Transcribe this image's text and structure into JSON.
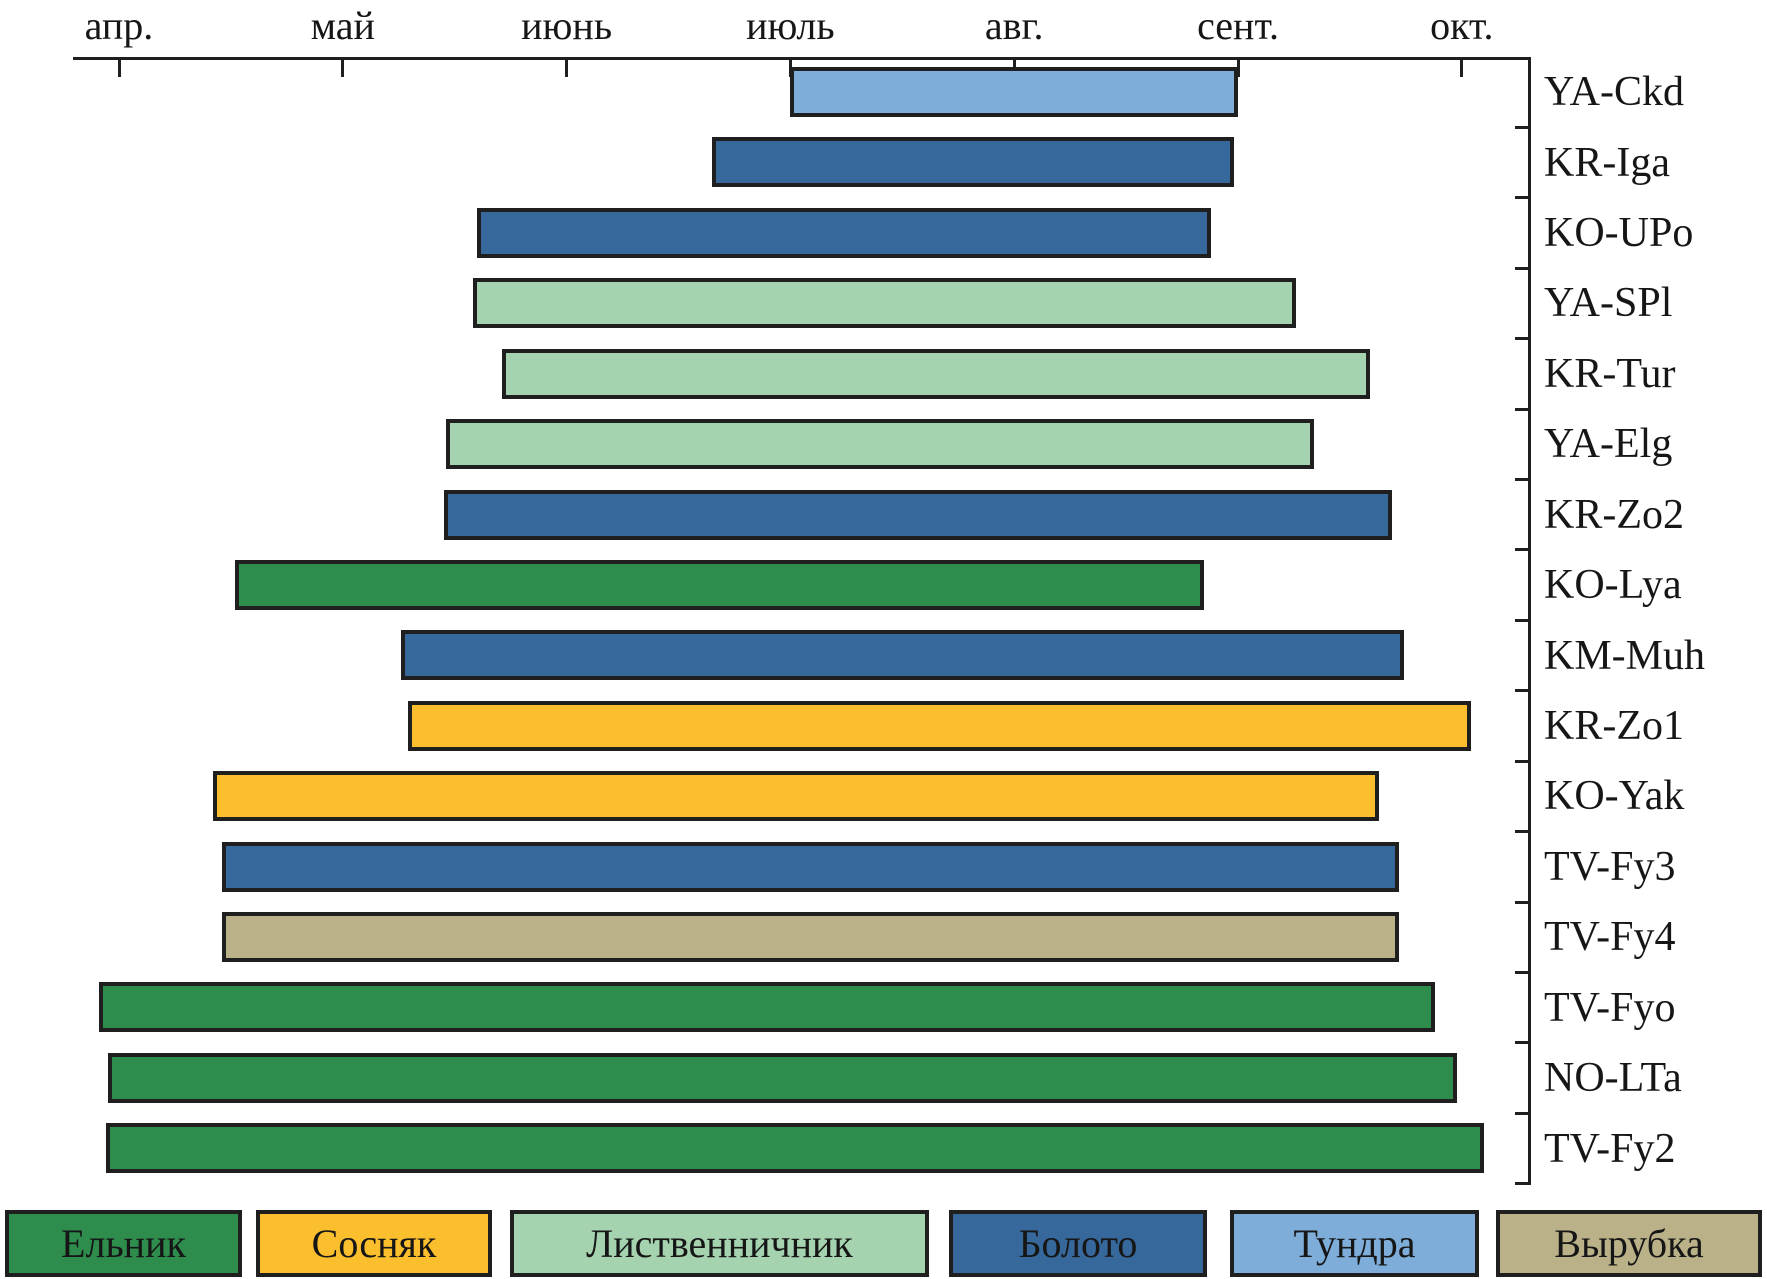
{
  "figure": {
    "background": "#ffffff",
    "axis_color": "#1f1f1f",
    "bar_border_color": "#1f1f1f"
  },
  "colors": {
    "elnik": "#2e8c4d",
    "sosnyak": "#fbbe2c",
    "listvennichnik": "#a5d3af",
    "boloto": "#36689b",
    "tundra": "#7eadda",
    "vyrubka": "#bab189"
  },
  "chart_data": {
    "type": "bar",
    "subtype": "gantt-horizontal-ranges",
    "x_axis": {
      "units": "calendar months; value k = tick position of month k (4 = апр … 10 = окт)",
      "ticks": [
        {
          "m": 4,
          "label": "апр."
        },
        {
          "m": 5,
          "label": "май"
        },
        {
          "m": 6,
          "label": "июнь"
        },
        {
          "m": 7,
          "label": "июль"
        },
        {
          "m": 8,
          "label": "авг."
        },
        {
          "m": 9,
          "label": "сент."
        },
        {
          "m": 10,
          "label": "окт."
        }
      ],
      "grid": false,
      "tick_labels_position": "top"
    },
    "rows": [
      {
        "site": "YA-Ckd",
        "habitat": "Тундра",
        "habitat_key": "tundra",
        "start_month": 7.0,
        "end_month": 9.0
      },
      {
        "site": "KR-Iga",
        "habitat": "Болото",
        "habitat_key": "boloto",
        "start_month": 6.65,
        "end_month": 8.98
      },
      {
        "site": "KO-UPo",
        "habitat": "Болото",
        "habitat_key": "boloto",
        "start_month": 5.6,
        "end_month": 8.88
      },
      {
        "site": "YA-SPl",
        "habitat": "Лиственничник",
        "habitat_key": "listvennichnik",
        "start_month": 5.58,
        "end_month": 9.26
      },
      {
        "site": "KR-Tur",
        "habitat": "Лиственничник",
        "habitat_key": "listvennichnik",
        "start_month": 5.71,
        "end_month": 9.59
      },
      {
        "site": "YA-Elg",
        "habitat": "Лиственничник",
        "habitat_key": "listvennichnik",
        "start_month": 5.46,
        "end_month": 9.34
      },
      {
        "site": "KR-Zo2",
        "habitat": "Болото",
        "habitat_key": "boloto",
        "start_month": 5.45,
        "end_month": 9.69
      },
      {
        "site": "KO-Lya",
        "habitat": "Ельник",
        "habitat_key": "elnik",
        "start_month": 4.52,
        "end_month": 8.85
      },
      {
        "site": "KM-Muh",
        "habitat": "Болото",
        "habitat_key": "boloto",
        "start_month": 5.26,
        "end_month": 9.74
      },
      {
        "site": "KR-Zo1",
        "habitat": "Сосняк",
        "habitat_key": "sosnyak",
        "start_month": 5.29,
        "end_month": 10.04
      },
      {
        "site": "KO-Yak",
        "habitat": "Сосняк",
        "habitat_key": "sosnyak",
        "start_month": 4.42,
        "end_month": 9.63
      },
      {
        "site": "TV-Fy3",
        "habitat": "Болото",
        "habitat_key": "boloto",
        "start_month": 4.46,
        "end_month": 9.72
      },
      {
        "site": "TV-Fy4",
        "habitat": "Вырубка",
        "habitat_key": "vyrubka",
        "start_month": 4.46,
        "end_month": 9.72
      },
      {
        "site": "TV-Fyo",
        "habitat": "Ельник",
        "habitat_key": "elnik",
        "start_month": 3.91,
        "end_month": 9.88
      },
      {
        "site": "NO-LTa",
        "habitat": "Ельник",
        "habitat_key": "elnik",
        "start_month": 3.95,
        "end_month": 9.98
      },
      {
        "site": "TV-Fy2",
        "habitat": "Ельник",
        "habitat_key": "elnik",
        "start_month": 3.94,
        "end_month": 10.1
      }
    ],
    "legend_position": "bottom"
  },
  "legend": {
    "items": [
      {
        "label": "Ельник",
        "key": "elnik"
      },
      {
        "label": "Сосняк",
        "key": "sosnyak"
      },
      {
        "label": "Лиственничник",
        "key": "listvennichnik"
      },
      {
        "label": "Болото",
        "key": "boloto"
      },
      {
        "label": "Тундра",
        "key": "tundra"
      },
      {
        "label": "Вырубка",
        "key": "vyrubka"
      }
    ]
  }
}
